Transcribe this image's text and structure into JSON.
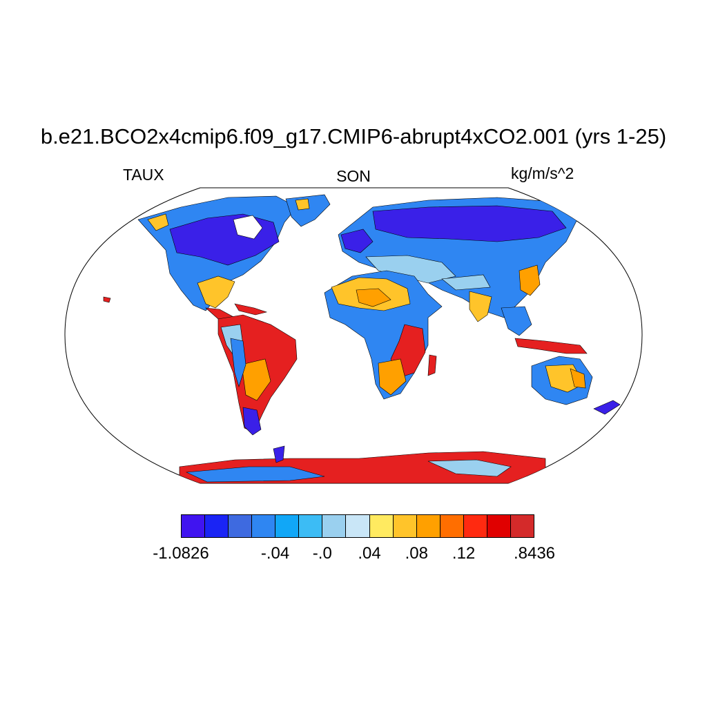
{
  "title": "b.e21.BCO2x4cmip6.f09_g17.CMIP6-abrupt4xCO2.001 (yrs 1-25)",
  "left_label": "TAUX",
  "center_label": "SON",
  "right_label": "kg/m/s^2",
  "colorbar": {
    "colors": [
      "#4014f0",
      "#1a24f5",
      "#3e6ae0",
      "#2f86f2",
      "#11a7f7",
      "#3cbcf5",
      "#9ad0ef",
      "#c9e6f7",
      "#ffea60",
      "#ffc42a",
      "#ffa000",
      "#ff6e00",
      "#ff2a10",
      "#e00000",
      "#d42a2a"
    ],
    "tick_labels": [
      {
        "text": "-1.0826",
        "boundary": 0
      },
      {
        "text": "-.04",
        "boundary": 4
      },
      {
        "text": "-.0",
        "boundary": 6
      },
      {
        "text": ".04",
        "boundary": 8
      },
      {
        "text": ".08",
        "boundary": 10
      },
      {
        "text": ".12",
        "boundary": 12
      },
      {
        "text": ".8436",
        "boundary": 15
      }
    ]
  },
  "land_colors": {
    "blue": "#2f86f2",
    "deep_blue": "#3a20e8",
    "light_blue": "#9ad0ef",
    "yellow": "#ffc42a",
    "orange": "#ffa000",
    "red": "#e52020"
  }
}
